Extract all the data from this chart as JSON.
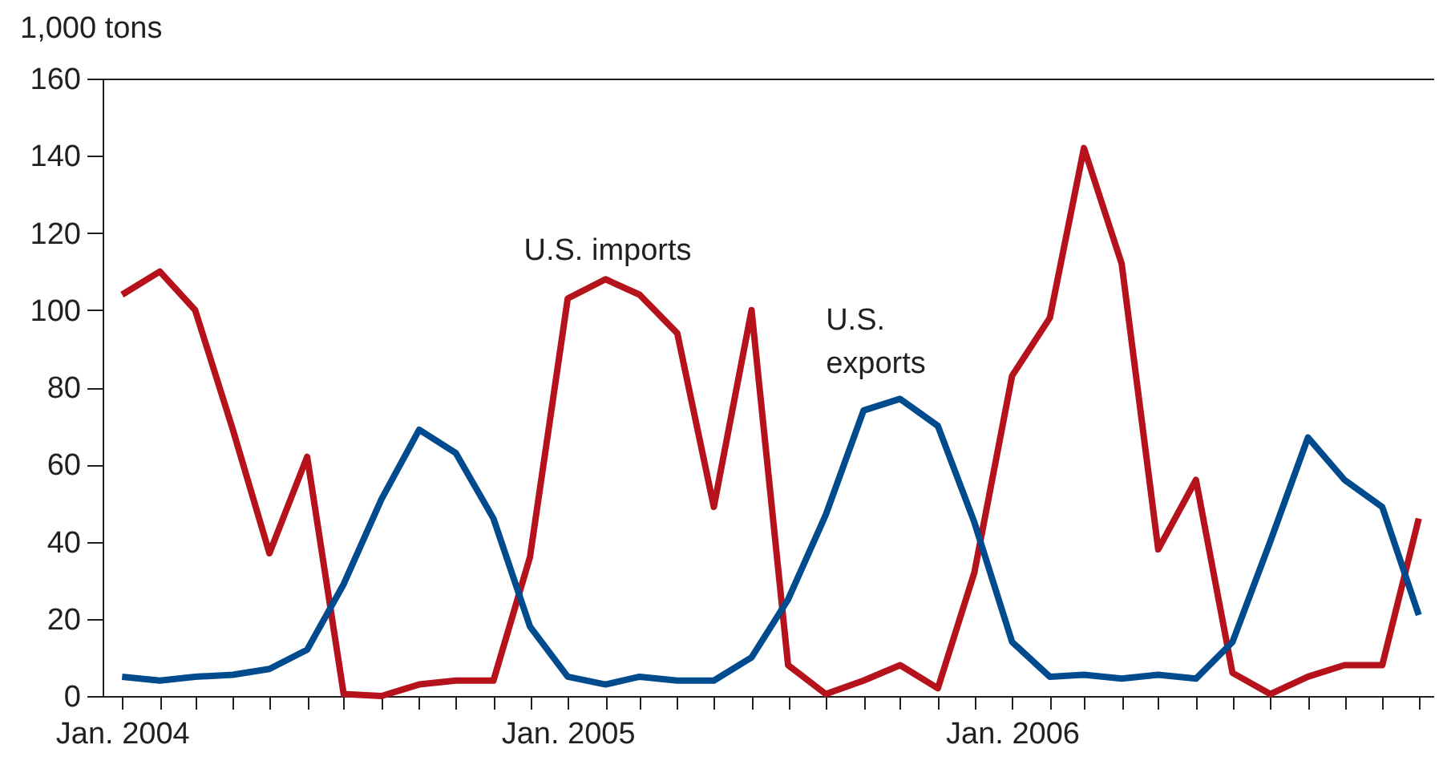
{
  "chart_data": {
    "type": "line",
    "ylabel": "1,000 tons",
    "x": [
      "2004-01",
      "2004-02",
      "2004-03",
      "2004-04",
      "2004-05",
      "2004-06",
      "2004-07",
      "2004-08",
      "2004-09",
      "2004-10",
      "2004-11",
      "2004-12",
      "2005-01",
      "2005-02",
      "2005-03",
      "2005-04",
      "2005-05",
      "2005-06",
      "2005-07",
      "2005-08",
      "2005-09",
      "2005-10",
      "2005-11",
      "2005-12",
      "2006-01",
      "2006-02",
      "2006-03",
      "2006-04",
      "2006-05",
      "2006-06",
      "2006-07",
      "2006-08",
      "2006-09",
      "2006-10",
      "2006-11",
      "2006-12"
    ],
    "series": [
      {
        "name": "U.S. imports",
        "color": "#b5121b",
        "values": [
          104,
          110,
          100,
          69,
          37,
          62,
          0.5,
          0,
          3,
          4,
          4,
          36,
          103,
          108,
          104,
          94,
          49,
          100,
          8,
          0.5,
          4,
          8,
          2,
          32,
          83,
          98,
          142,
          112,
          38,
          56,
          6,
          0.5,
          5,
          8,
          8,
          46
        ]
      },
      {
        "name": "U.S. exports",
        "color": "#004b8d",
        "values": [
          5,
          4,
          5,
          5.5,
          7,
          12,
          29,
          51,
          69,
          63,
          46,
          18,
          5,
          3,
          5,
          4,
          4,
          10,
          25,
          47,
          74,
          77,
          70,
          45,
          14,
          5,
          5.5,
          4.5,
          5.5,
          4.5,
          14,
          40,
          67,
          56,
          49,
          21
        ]
      }
    ],
    "ylim": [
      0,
      160
    ],
    "yticks": [
      0,
      20,
      40,
      60,
      80,
      100,
      120,
      140,
      160
    ],
    "xlim": [
      "2003-12-16",
      "2006-12-13"
    ],
    "xticks": [
      {
        "value": "2004-01",
        "label": "Jan. 2004"
      },
      {
        "value": "2004-02",
        "label": null
      },
      {
        "value": "2004-03",
        "label": null
      },
      {
        "value": "2004-04",
        "label": null
      },
      {
        "value": "2004-05",
        "label": null
      },
      {
        "value": "2004-06",
        "label": null
      },
      {
        "value": "2004-07",
        "label": null
      },
      {
        "value": "2004-08",
        "label": null
      },
      {
        "value": "2004-09",
        "label": null
      },
      {
        "value": "2004-10",
        "label": null
      },
      {
        "value": "2004-11",
        "label": null
      },
      {
        "value": "2004-12",
        "label": null
      },
      {
        "value": "2005-01",
        "label": "Jan. 2005"
      },
      {
        "value": "2005-02",
        "label": null
      },
      {
        "value": "2005-03",
        "label": null
      },
      {
        "value": "2005-04",
        "label": null
      },
      {
        "value": "2005-05",
        "label": null
      },
      {
        "value": "2005-06",
        "label": null
      },
      {
        "value": "2005-07",
        "label": null
      },
      {
        "value": "2005-08",
        "label": null
      },
      {
        "value": "2005-09",
        "label": null
      },
      {
        "value": "2005-10",
        "label": null
      },
      {
        "value": "2005-11",
        "label": null
      },
      {
        "value": "2005-12",
        "label": null
      },
      {
        "value": "2006-01",
        "label": "Jan. 2006"
      },
      {
        "value": "2006-02",
        "label": null
      },
      {
        "value": "2006-03",
        "label": null
      },
      {
        "value": "2006-04",
        "label": null
      },
      {
        "value": "2006-05",
        "label": null
      },
      {
        "value": "2006-06",
        "label": null
      },
      {
        "value": "2006-07",
        "label": null
      },
      {
        "value": "2006-08",
        "label": null
      },
      {
        "value": "2006-09",
        "label": null
      },
      {
        "value": "2006-10",
        "label": null
      },
      {
        "value": "2006-11",
        "label": null
      },
      {
        "value": "2006-12",
        "label": null
      }
    ]
  }
}
